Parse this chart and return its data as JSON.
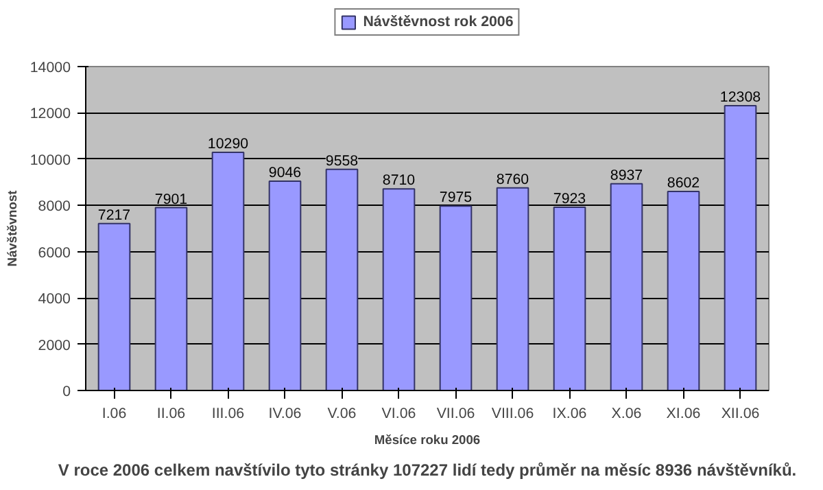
{
  "chart_data": {
    "type": "bar",
    "xlabel": "Měsíce roku 2006",
    "ylabel": "Návštěvnost",
    "categories": [
      "I.06",
      "II.06",
      "III.06",
      "IV.06",
      "V.06",
      "VI.06",
      "VII.06",
      "VIII.06",
      "IX.06",
      "X.06",
      "XI.06",
      "XII.06"
    ],
    "series": [
      {
        "name": "Návštěvnost rok 2006",
        "color": "#9999ff",
        "values": [
          7217,
          7901,
          10290,
          9046,
          9558,
          8710,
          7975,
          8760,
          7923,
          8937,
          8602,
          12308
        ]
      }
    ],
    "ylim": [
      0,
      14000
    ],
    "yticks": [
      0,
      2000,
      4000,
      6000,
      8000,
      10000,
      12000,
      14000
    ],
    "grid": "y",
    "legend": "top",
    "data_labels": true,
    "annotations": [
      "V roce 2006 celkem navštívilo tyto stránky 107227 lidí tedy průměr na měsíc 8936 návštěvníků."
    ]
  }
}
